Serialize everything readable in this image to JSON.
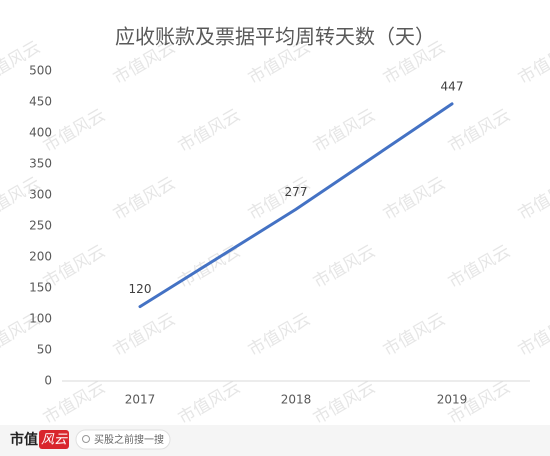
{
  "chart_data": {
    "type": "line",
    "title": "应收账款及票据平均周转天数（天）",
    "categories": [
      "2017",
      "2018",
      "2019"
    ],
    "values": [
      120,
      277,
      447
    ],
    "color": "#4472c4",
    "ylim": [
      0,
      500
    ],
    "yticks": [
      0,
      50,
      100,
      150,
      200,
      250,
      300,
      350,
      400,
      450,
      500
    ],
    "grid": false
  },
  "watermark": "市值风云",
  "footer": {
    "logo": "市值",
    "logo_badge": "风云",
    "search": "买股之前搜一搜"
  }
}
